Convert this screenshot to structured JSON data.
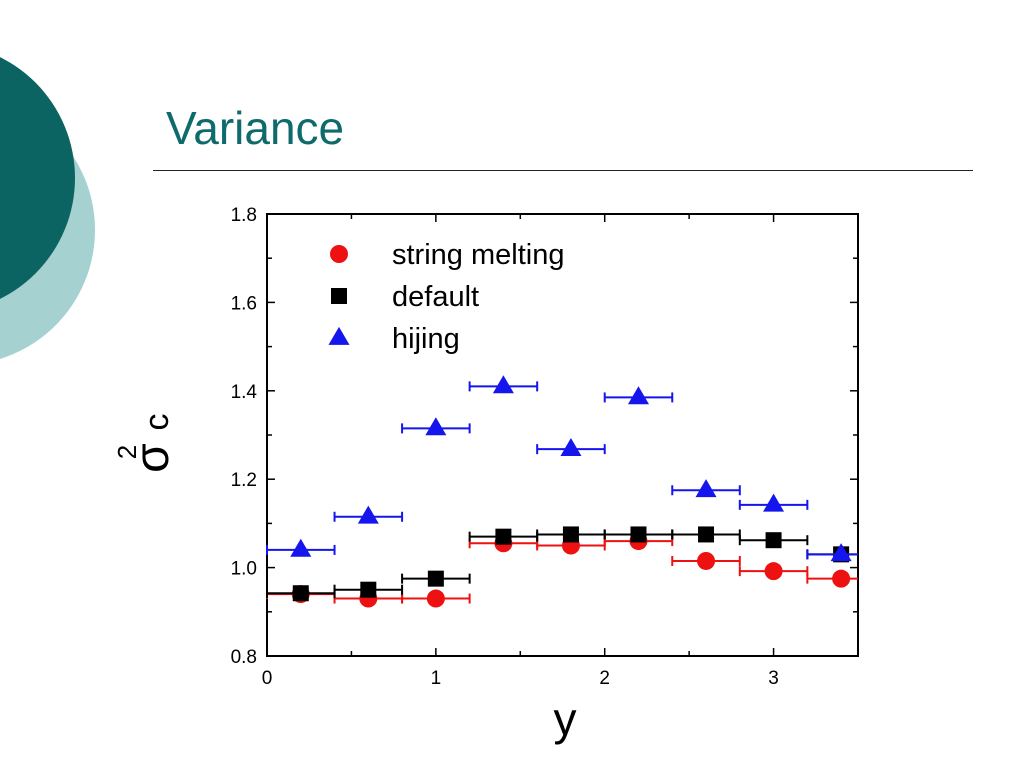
{
  "slide": {
    "title": "Variance",
    "colors": {
      "title": "#0f6b6b",
      "circle_dark": "#0b6461",
      "circle_light": "#a6d1d1"
    }
  },
  "chart_data": {
    "type": "scatter",
    "xlabel": "y",
    "ylabel_symbol": "σ",
    "ylabel_superscript": "2",
    "ylabel_subscript": "c",
    "xlim": [
      0,
      3.5
    ],
    "ylim": [
      0.8,
      1.8
    ],
    "x_ticks": [
      "0",
      "1",
      "2",
      "3"
    ],
    "y_ticks": [
      "0.8",
      "1.0",
      "1.2",
      "1.4",
      "1.6",
      "1.8"
    ],
    "legend_position": "top-left",
    "series": [
      {
        "name": "string melting",
        "marker": "circle",
        "color": "#ee1111",
        "x": [
          0.2,
          0.6,
          1.0,
          1.4,
          1.8,
          2.2,
          2.6,
          3.0,
          3.4
        ],
        "y": [
          0.94,
          0.93,
          0.93,
          1.055,
          1.05,
          1.06,
          1.015,
          0.992,
          0.975
        ],
        "xerr": 0.2
      },
      {
        "name": "default",
        "marker": "square",
        "color": "#000000",
        "x": [
          0.2,
          0.6,
          1.0,
          1.4,
          1.8,
          2.2,
          2.6,
          3.0,
          3.4
        ],
        "y": [
          0.942,
          0.95,
          0.975,
          1.07,
          1.075,
          1.075,
          1.075,
          1.062,
          1.03
        ],
        "xerr": 0.2
      },
      {
        "name": "hijing",
        "marker": "triangle",
        "color": "#1515ee",
        "x": [
          0.2,
          0.6,
          1.0,
          1.4,
          1.8,
          2.2,
          2.6,
          3.0,
          3.4
        ],
        "y": [
          1.04,
          1.115,
          1.315,
          1.41,
          1.268,
          1.385,
          1.175,
          1.142,
          1.03
        ],
        "xerr": 0.2
      }
    ]
  }
}
